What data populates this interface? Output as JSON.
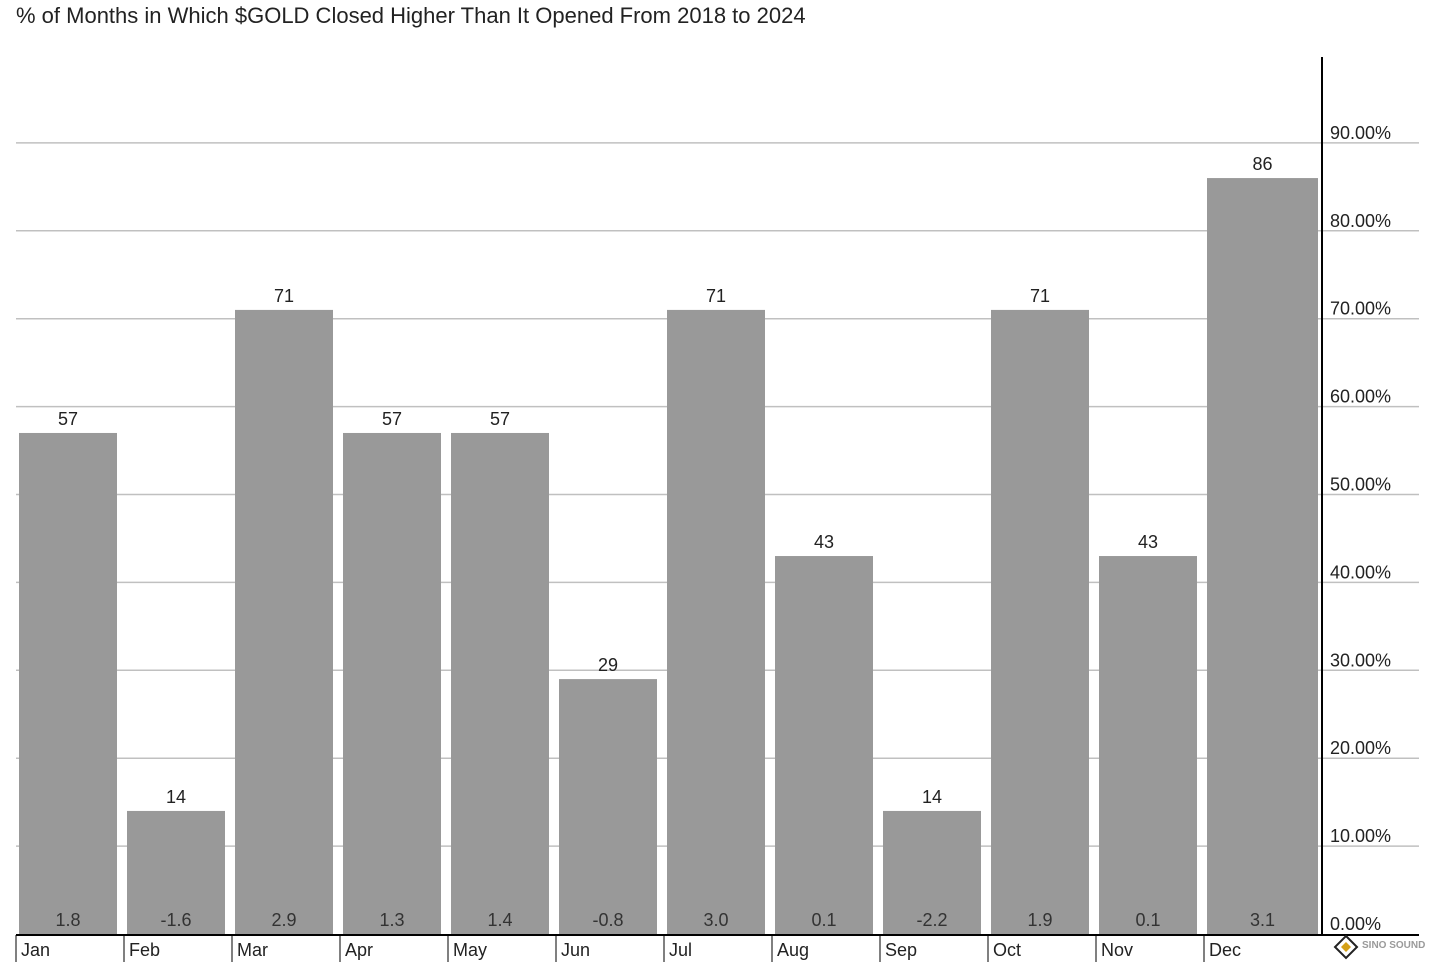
{
  "chart_data": {
    "type": "bar",
    "title": "% of Months in Which $GOLD Closed Higher Than It Opened From 2018 to 2024",
    "categories": [
      "Jan",
      "Feb",
      "Mar",
      "Apr",
      "May",
      "Jun",
      "Jul",
      "Aug",
      "Sep",
      "Oct",
      "Nov",
      "Dec"
    ],
    "values": [
      57,
      14,
      71,
      57,
      57,
      29,
      71,
      43,
      14,
      71,
      43,
      86
    ],
    "value_labels": [
      "57",
      "14",
      "71",
      "57",
      "57",
      "29",
      "71",
      "43",
      "14",
      "71",
      "43",
      "86"
    ],
    "secondary_labels": [
      "1.8",
      "-1.6",
      "2.9",
      "1.3",
      "1.4",
      "-0.8",
      "3.0",
      "0.1",
      "-2.2",
      "1.9",
      "0.1",
      "3.1"
    ],
    "ylim": [
      0,
      100
    ],
    "yticks": [
      0,
      10,
      20,
      30,
      40,
      50,
      60,
      70,
      80,
      90
    ],
    "ytick_labels": [
      "0.00%",
      "10.00%",
      "20.00%",
      "30.00%",
      "40.00%",
      "50.00%",
      "60.00%",
      "70.00%",
      "80.00%",
      "90.00%"
    ],
    "y_axis_position": "right",
    "grid": true,
    "xlabel": "",
    "ylabel": ""
  },
  "colors": {
    "bar": "#999999",
    "grid": "#c0c0c0",
    "axis": "#000000"
  },
  "watermark": {
    "text": "SINO SOUND",
    "icon": "diamond-logo-icon"
  }
}
